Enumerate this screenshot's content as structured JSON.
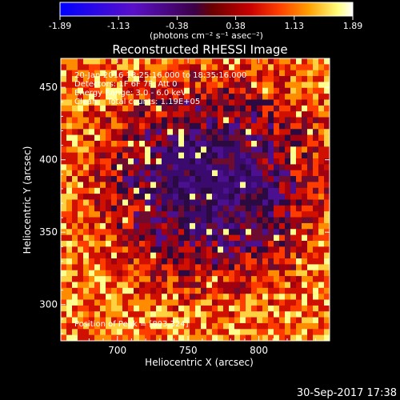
{
  "colorbar": {
    "ticks": [
      "-1.89",
      "-1.13",
      "-0.38",
      "0.38",
      "1.13",
      "1.89"
    ],
    "unit_label": "(photons cm⁻² s⁻¹ asec⁻²)",
    "colors": [
      "#0000ff",
      "#5a10c8",
      "#3c0046",
      "#6a0000",
      "#c80000",
      "#ff4000",
      "#ffa000",
      "#ffff80",
      "#ffffff"
    ]
  },
  "plot": {
    "title": "Reconstructed RHESSI Image",
    "xlabel": "Heliocentric X (arcsec)",
    "ylabel": "Heliocentric Y (arcsec)",
    "xticks": [
      "700",
      "750",
      "800"
    ],
    "yticks": [
      "300",
      "350",
      "400",
      "450"
    ],
    "info_lines": [
      "20-Jan-2016 18:25:16.000 to 18:35:16.000",
      "Detectors: 1F 6F 7F, Att 0",
      "Energy Range: 3.0 - 6.0 keV",
      "Clean    Total counts: 1.19E+05"
    ],
    "peak_label": "Position of Peak = [803,324]"
  },
  "footer": {
    "timestamp": "30-Sep-2017 17:38"
  },
  "chart_data": {
    "type": "heatmap",
    "title": "Reconstructed RHESSI Image",
    "xlabel": "Heliocentric X (arcsec)",
    "ylabel": "Heliocentric Y (arcsec)",
    "xlim": [
      660,
      850
    ],
    "ylim": [
      275,
      470
    ],
    "colorbar_range": [
      -1.89,
      1.89
    ],
    "colorbar_unit": "photons cm^-2 s^-1 asec^-2",
    "time_range": "20-Jan-2016 18:25:16.000 to 18:35:16.000",
    "detectors": "1F 6F 7F, Att 0",
    "energy_range_keV": [
      3.0,
      6.0
    ],
    "algorithm": "Clean",
    "total_counts": 119000,
    "peak_position": [
      803,
      324
    ],
    "pattern": "ring of bright emission around a dark central region near (765, 385)"
  }
}
